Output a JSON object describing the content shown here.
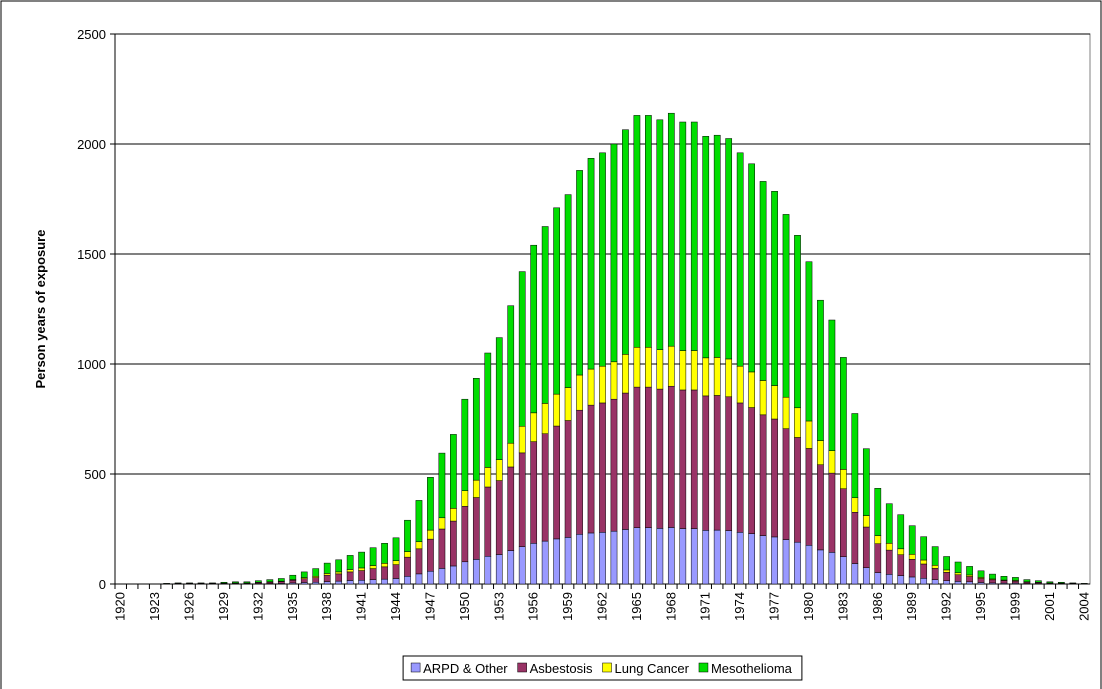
{
  "chart_data": {
    "type": "stacked_bar",
    "y_label": "Person years of exposure",
    "categories": [
      "1920",
      null,
      null,
      "1923",
      null,
      null,
      "1926",
      null,
      null,
      "1929",
      null,
      null,
      "1932",
      null,
      null,
      "1935",
      null,
      null,
      "1938",
      null,
      null,
      "1941",
      null,
      null,
      "1944",
      null,
      null,
      "1947",
      null,
      null,
      "1950",
      null,
      null,
      "1953",
      null,
      null,
      "1956",
      null,
      null,
      "1959",
      null,
      null,
      "1962",
      null,
      null,
      "1965",
      null,
      null,
      "1968",
      null,
      null,
      "1971",
      null,
      null,
      "1974",
      null,
      null,
      "1977",
      null,
      null,
      "1980",
      null,
      null,
      "1983",
      null,
      null,
      "1986",
      null,
      null,
      "1989",
      null,
      null,
      "1992",
      null,
      null,
      "1995",
      null,
      null,
      "1999",
      null,
      null,
      "2001",
      null,
      null,
      "2004"
    ],
    "series": [
      {
        "name": "ARPD & Other",
        "color": "#9999ff",
        "values": [
          0,
          0,
          0,
          0,
          0,
          1,
          1,
          1,
          1,
          1,
          1,
          1,
          2,
          2,
          3,
          5,
          7,
          8,
          11,
          13,
          16,
          17,
          20,
          22,
          25,
          35,
          46,
          58,
          71,
          82,
          101,
          112,
          126,
          134,
          152,
          170,
          185,
          195,
          205,
          212,
          226,
          232,
          235,
          240,
          248,
          256,
          256,
          253,
          257,
          252,
          252,
          244,
          245,
          243,
          235,
          229,
          220,
          214,
          202,
          190,
          176,
          155,
          144,
          124,
          93,
          74,
          52,
          44,
          38,
          32,
          26,
          20,
          15,
          12,
          10,
          7,
          5,
          4,
          4,
          2,
          2,
          1,
          1,
          1,
          0
        ]
      },
      {
        "name": "Asbestosis",
        "color": "#993366",
        "values": [
          0,
          0,
          0,
          0,
          1,
          2,
          2,
          2,
          2,
          2,
          3,
          3,
          5,
          6,
          8,
          12,
          17,
          21,
          29,
          33,
          39,
          44,
          50,
          56,
          63,
          87,
          114,
          146,
          179,
          204,
          252,
          281,
          315,
          336,
          380,
          426,
          462,
          488,
          513,
          531,
          564,
          581,
          588,
          600,
          620,
          639,
          639,
          633,
          642,
          630,
          630,
          611,
          612,
          608,
          588,
          573,
          549,
          536,
          504,
          476,
          440,
          387,
          360,
          309,
          233,
          185,
          131,
          110,
          95,
          80,
          65,
          51,
          38,
          30,
          24,
          18,
          14,
          11,
          9,
          6,
          5,
          3,
          2,
          2,
          1
        ]
      },
      {
        "name": "Lung Cancer",
        "color": "#ffff00",
        "values": [
          0,
          0,
          0,
          0,
          0,
          0,
          0,
          0,
          0,
          1,
          1,
          1,
          1,
          2,
          2,
          3,
          5,
          6,
          8,
          9,
          11,
          12,
          14,
          16,
          18,
          25,
          32,
          41,
          51,
          58,
          71,
          79,
          89,
          95,
          108,
          121,
          131,
          138,
          145,
          150,
          160,
          164,
          167,
          170,
          176,
          181,
          181,
          179,
          182,
          179,
          179,
          173,
          173,
          172,
          167,
          162,
          156,
          152,
          143,
          135,
          125,
          110,
          102,
          88,
          66,
          52,
          37,
          31,
          27,
          23,
          18,
          14,
          11,
          9,
          7,
          5,
          4,
          3,
          3,
          2,
          1,
          1,
          1,
          0,
          0
        ]
      },
      {
        "name": "Mesothelioma",
        "color": "#00dd00",
        "values": [
          0,
          0,
          0,
          0,
          2,
          2,
          2,
          2,
          2,
          4,
          5,
          5,
          7,
          10,
          12,
          20,
          26,
          35,
          47,
          55,
          64,
          72,
          81,
          91,
          104,
          143,
          188,
          240,
          294,
          336,
          416,
          463,
          520,
          555,
          625,
          703,
          762,
          804,
          847,
          877,
          930,
          958,
          970,
          990,
          1021,
          1054,
          1054,
          1045,
          1059,
          1039,
          1039,
          1007,
          1010,
          1002,
          970,
          946,
          905,
          883,
          831,
          784,
          724,
          638,
          594,
          509,
          383,
          304,
          215,
          180,
          155,
          130,
          106,
          85,
          61,
          49,
          39,
          30,
          22,
          17,
          14,
          10,
          7,
          5,
          4,
          2,
          2
        ]
      }
    ],
    "ylim": [
      0,
      2500
    ],
    "yticks": [
      0,
      500,
      1000,
      1500,
      2000,
      2500
    ],
    "grid": true,
    "legend": "bottom"
  }
}
